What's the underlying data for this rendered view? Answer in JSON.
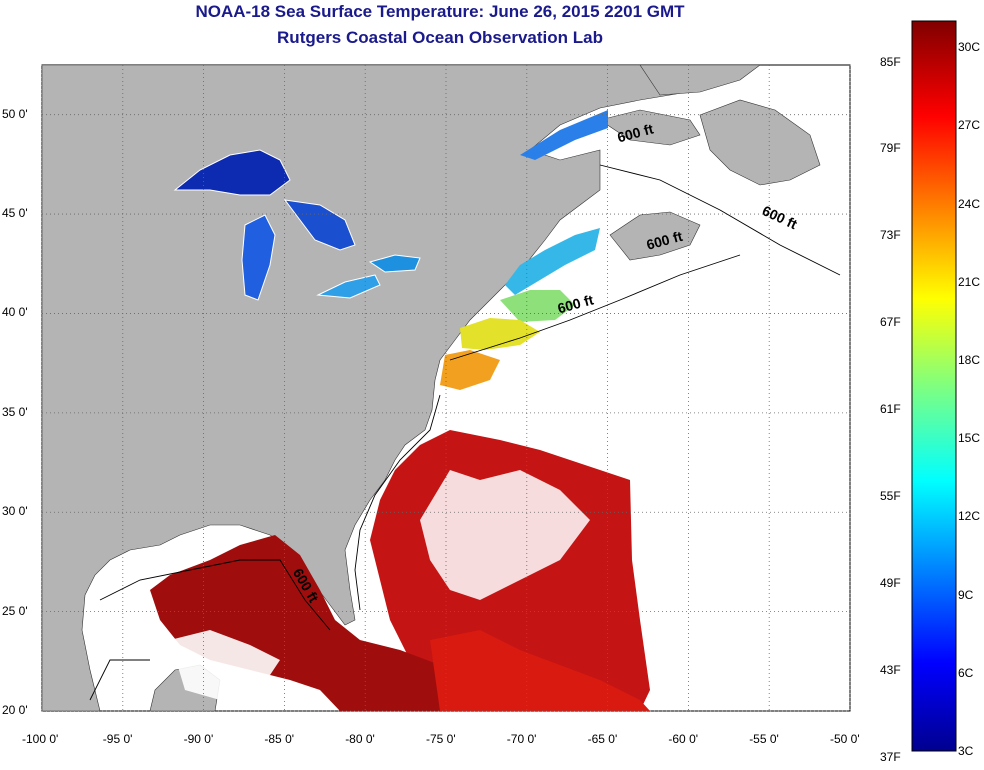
{
  "title": "NOAA-18 Sea Surface Temperature:  June 26, 2015 2201 GMT",
  "subtitle": "Rutgers Coastal Ocean Observation Lab",
  "map": {
    "lon_range": [
      -100,
      -50
    ],
    "lat_range": [
      20,
      52.5
    ],
    "lat_ticks": [
      {
        "value": 50,
        "label": "50 0'"
      },
      {
        "value": 45,
        "label": "45 0'"
      },
      {
        "value": 40,
        "label": "40 0'"
      },
      {
        "value": 35,
        "label": "35 0'"
      },
      {
        "value": 30,
        "label": "30 0'"
      },
      {
        "value": 25,
        "label": "25 0'"
      },
      {
        "value": 20,
        "label": "20 0'"
      }
    ],
    "lon_ticks": [
      {
        "value": -100,
        "label": "-100 0'"
      },
      {
        "value": -95,
        "label": "-95 0'"
      },
      {
        "value": -90,
        "label": "-90 0'"
      },
      {
        "value": -85,
        "label": "-85 0'"
      },
      {
        "value": -80,
        "label": "-80 0'"
      },
      {
        "value": -75,
        "label": "-75 0'"
      },
      {
        "value": -70,
        "label": "-70 0'"
      },
      {
        "value": -65,
        "label": "-65 0'"
      },
      {
        "value": -60,
        "label": "-60 0'"
      },
      {
        "value": -55,
        "label": "-55 0'"
      },
      {
        "value": -50,
        "label": "-50 0'"
      }
    ],
    "isobath_labels": [
      {
        "text": "600 ft",
        "lon": -64.3,
        "lat": 48.6
      },
      {
        "text": "600 ft",
        "lon": -55.5,
        "lat": 45.0
      },
      {
        "text": "600 ft",
        "lon": -62.5,
        "lat": 43.2
      },
      {
        "text": "600 ft",
        "lon": -68.0,
        "lat": 40.0
      },
      {
        "text": "600 ft",
        "lon": -84.5,
        "lat": 27.0
      }
    ],
    "colors": {
      "land": "#b4b4b4",
      "no_data": "#ffffff",
      "grid": "#555555"
    }
  },
  "colorbar": {
    "fahrenheit": [
      "85F",
      "79F",
      "73F",
      "67F",
      "61F",
      "55F",
      "49F",
      "43F",
      "37F"
    ],
    "celsius": [
      "30C",
      "27C",
      "24C",
      "21C",
      "18C",
      "15C",
      "12C",
      "9C",
      "6C",
      "3C"
    ],
    "range_c": [
      3,
      31
    ]
  }
}
